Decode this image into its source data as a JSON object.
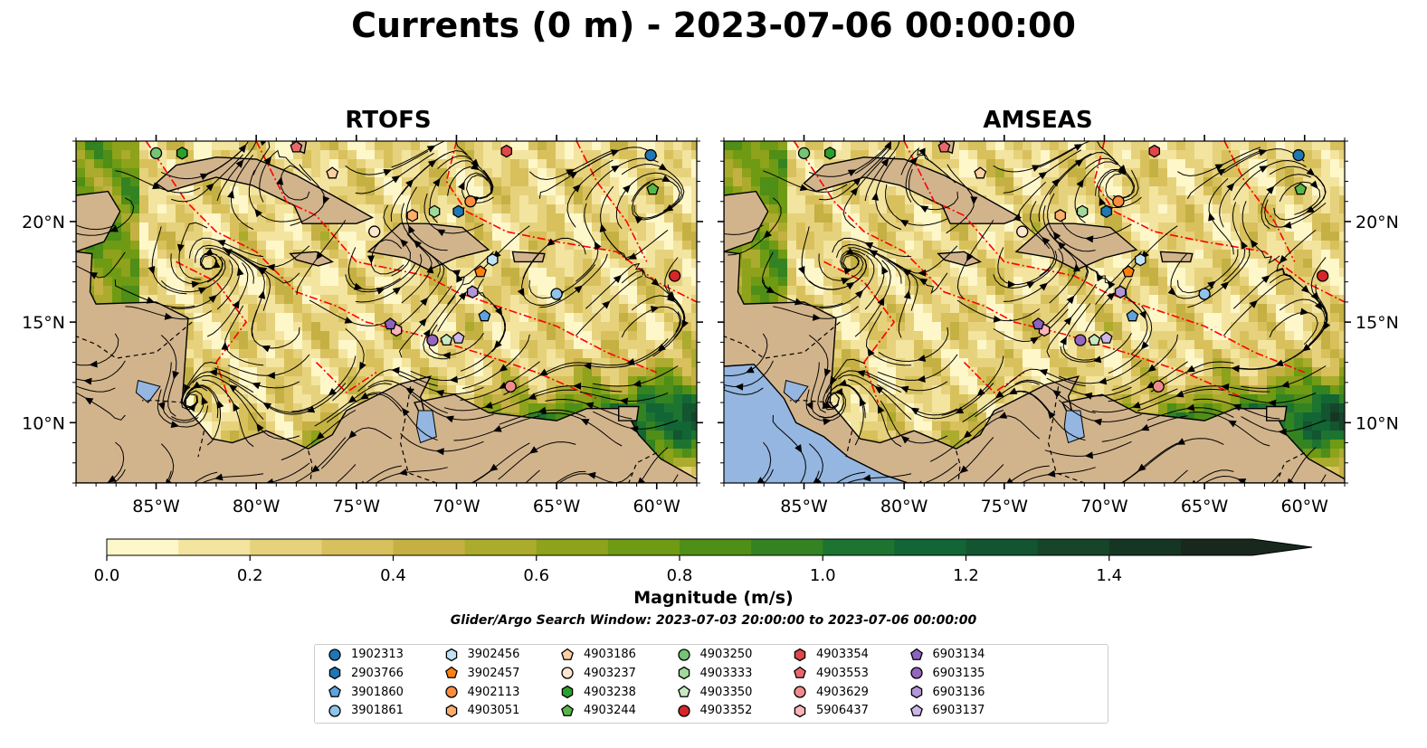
{
  "title": "Currents (0 m) - 2023-07-06 00:00:00",
  "panels": [
    {
      "title": "RTOFS"
    },
    {
      "title": "AMSEAS"
    }
  ],
  "colors": {
    "land": "#d2b48c",
    "pacific": "#94b6e0",
    "eez_line": "#ff0000",
    "streamline": "#000000",
    "colormap": [
      "#fef7c9",
      "#f3e4a0",
      "#e6d27c",
      "#d8c15c",
      "#c5b143",
      "#abab2e",
      "#8ea21b",
      "#6f9a14",
      "#4f8e17",
      "#338322",
      "#1c7430",
      "#126534",
      "#135530",
      "#16452a",
      "#163624",
      "#18281c"
    ]
  },
  "chart_data": {
    "type": "heatmap",
    "variable": "Surface current magnitude with streamlines",
    "depth": "0 m",
    "time": "2023-07-06 00:00:00",
    "xlim": [
      -89,
      -58
    ],
    "ylim": [
      7,
      24
    ],
    "x_ticks": [
      -85,
      -80,
      -75,
      -70,
      -65,
      -60
    ],
    "x_tick_labels": [
      "85°W",
      "80°W",
      "75°W",
      "70°W",
      "65°W",
      "60°W"
    ],
    "y_ticks": [
      10,
      15,
      20
    ],
    "y_tick_labels": [
      "10°N",
      "15°N",
      "20°N"
    ],
    "colorbar": {
      "label": "Magnitude (m/s)",
      "min": 0.0,
      "max": 1.6,
      "step": 0.1,
      "extend": "max",
      "ticks": [
        0.0,
        0.2,
        0.4,
        0.6,
        0.8,
        1.0,
        1.2,
        1.4
      ],
      "tick_labels": [
        "0.0",
        "0.2",
        "0.4",
        "0.6",
        "0.8",
        "1.0",
        "1.2",
        "1.4"
      ]
    },
    "search_window": "Glider/Argo Search Window: 2023-07-03 20:00:00 to 2023-07-06 00:00:00",
    "floats": [
      {
        "id": "1902313",
        "marker": "circle",
        "color": "#1f77b4",
        "lon": -60.3,
        "lat": 23.3
      },
      {
        "id": "2903766",
        "marker": "hexagon",
        "color": "#1f77b4",
        "lon": -69.9,
        "lat": 20.5
      },
      {
        "id": "3901860",
        "marker": "pentagon",
        "color": "#5fa2dd",
        "lon": -68.6,
        "lat": 15.3
      },
      {
        "id": "3901861",
        "marker": "circle",
        "color": "#8fc3ea",
        "lon": -65.0,
        "lat": 16.4
      },
      {
        "id": "3902456",
        "marker": "hexagon",
        "color": "#bfe2f7",
        "lon": -68.2,
        "lat": 18.1
      },
      {
        "id": "3902457",
        "marker": "pentagon",
        "color": "#ff7f0e",
        "lon": -68.8,
        "lat": 17.5
      },
      {
        "id": "4902113",
        "marker": "circle",
        "color": "#fd8d3c",
        "lon": -69.3,
        "lat": 21.0
      },
      {
        "id": "4903051",
        "marker": "hexagon",
        "color": "#fdae6b",
        "lon": -72.2,
        "lat": 20.3
      },
      {
        "id": "4903186",
        "marker": "pentagon",
        "color": "#fdd0a2",
        "lon": -76.2,
        "lat": 22.4
      },
      {
        "id": "4903237",
        "marker": "circle",
        "color": "#fee6ce",
        "lon": -74.1,
        "lat": 19.5
      },
      {
        "id": "4903238",
        "marker": "hexagon",
        "color": "#2ca02c",
        "lon": -83.7,
        "lat": 23.4
      },
      {
        "id": "4903244",
        "marker": "pentagon",
        "color": "#55b748",
        "lon": -60.2,
        "lat": 21.6
      },
      {
        "id": "4903250",
        "marker": "circle",
        "color": "#74c476",
        "lon": -85.0,
        "lat": 23.4
      },
      {
        "id": "4903333",
        "marker": "hexagon",
        "color": "#a1d99b",
        "lon": -71.1,
        "lat": 20.5
      },
      {
        "id": "4903350",
        "marker": "pentagon",
        "color": "#c7e9c0",
        "lon": -70.5,
        "lat": 14.1
      },
      {
        "id": "4903352",
        "marker": "circle",
        "color": "#d62728",
        "lon": -59.1,
        "lat": 17.3
      },
      {
        "id": "4903354",
        "marker": "hexagon",
        "color": "#e0474a",
        "lon": -67.5,
        "lat": 23.5
      },
      {
        "id": "4903553",
        "marker": "pentagon",
        "color": "#e8696b",
        "lon": -78.0,
        "lat": 23.7
      },
      {
        "id": "4903629",
        "marker": "circle",
        "color": "#f08b8d",
        "lon": -67.3,
        "lat": 11.8
      },
      {
        "id": "5906437",
        "marker": "hexagon",
        "color": "#fbb4b9",
        "lon": -73.0,
        "lat": 14.6
      },
      {
        "id": "6903134",
        "marker": "pentagon",
        "color": "#8c63c0",
        "lon": -73.3,
        "lat": 14.9
      },
      {
        "id": "6903135",
        "marker": "circle",
        "color": "#9467bd",
        "lon": -71.2,
        "lat": 14.1
      },
      {
        "id": "6903136",
        "marker": "hexagon",
        "color": "#b396d6",
        "lon": -69.2,
        "lat": 16.5
      },
      {
        "id": "6903137",
        "marker": "pentagon",
        "color": "#cdb6e8",
        "lon": -69.9,
        "lat": 14.2
      }
    ]
  }
}
